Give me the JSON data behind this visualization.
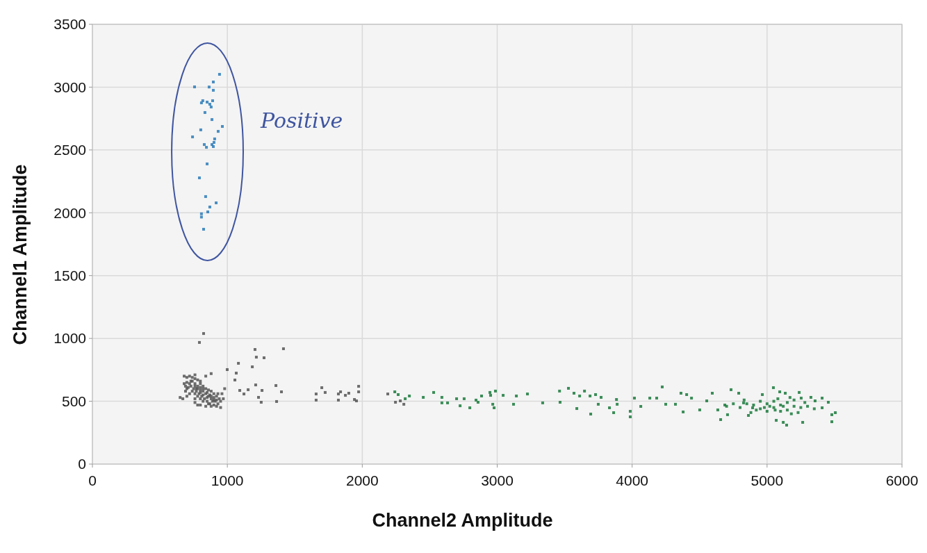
{
  "chart_data": {
    "type": "scatter",
    "xlabel": "Channel2 Amplitude",
    "ylabel": "Channel1 Amplitude",
    "xlim": [
      0,
      6000
    ],
    "ylim": [
      0,
      3500
    ],
    "xticks": [
      0,
      1000,
      2000,
      3000,
      4000,
      5000,
      6000
    ],
    "yticks": [
      0,
      500,
      1000,
      1500,
      2000,
      2500,
      3000,
      3500
    ],
    "grid": true,
    "marker": "square",
    "annotations": [
      "Positive"
    ],
    "series": [
      {
        "color": "#2b7bb9",
        "x": [
          942,
          896,
          757,
          865,
          896,
          818,
          808,
          850,
          891,
          870,
          880,
          834,
          886,
          963,
          932,
          803,
          742,
          906,
          901,
          829,
          886,
          845,
          896,
          850,
          793,
          839,
          917,
          870,
          855,
          808,
          808,
          824
        ],
        "values": [
          3102,
          3041,
          3002,
          3001,
          2975,
          2892,
          2875,
          2881,
          2892,
          2864,
          2842,
          2798,
          2742,
          2687,
          2648,
          2660,
          2604,
          2588,
          2560,
          2543,
          2543,
          2521,
          2527,
          2389,
          2278,
          2129,
          2079,
          2046,
          2007,
          1992,
          1966,
          1869
        ]
      },
      {
        "color": "#555555",
        "x": [
          680,
          700,
          720,
          740,
          760,
          780,
          700,
          720,
          740,
          760,
          780,
          800,
          820,
          840,
          860,
          880,
          900,
          920,
          940,
          950,
          930,
          900,
          870,
          850,
          830,
          810,
          790,
          770,
          750,
          730,
          710,
          700,
          690,
          680,
          760,
          800,
          820,
          840,
          860,
          880,
          900,
          910,
          860,
          820,
          880,
          840,
          800,
          780,
          760,
          720,
          700,
          690,
          740,
          770,
          800,
          820,
          850,
          870,
          890,
          900,
          920,
          930,
          780,
          800,
          760,
          730,
          800,
          820,
          850,
          880,
          760,
          970,
          960,
          980,
          650,
          670,
          880,
          840,
          760,
          780,
          800,
          950,
          920,
          824,
          793,
          1205,
          1416,
          1215,
          1272,
          1082,
          1185,
          999,
          1066,
          1056,
          1210,
          1360,
          1257,
          1401,
          1092,
          1154,
          1123,
          1231,
          1251,
          1365,
          1658,
          1700,
          1725,
          1658,
          1823,
          1839,
          1823,
          1875,
          1900,
          1942,
          1957,
          1973,
          1973,
          2189,
          2246,
          2282,
          2308
        ],
        "values": [
          700,
          690,
          700,
          690,
          680,
          670,
          650,
          640,
          660,
          640,
          620,
          640,
          620,
          600,
          590,
          580,
          560,
          540,
          520,
          500,
          480,
          470,
          480,
          500,
          520,
          540,
          560,
          580,
          600,
          620,
          610,
          600,
          620,
          640,
          560,
          590,
          580,
          560,
          540,
          520,
          510,
          500,
          480,
          500,
          460,
          460,
          520,
          540,
          520,
          560,
          540,
          580,
          580,
          600,
          610,
          550,
          530,
          550,
          500,
          530,
          510,
          560,
          600,
          570,
          620,
          660,
          660,
          600,
          570,
          540,
          490,
          520,
          560,
          600,
          530,
          520,
          720,
          700,
          710,
          470,
          470,
          450,
          460,
          1039,
          968,
          912,
          918,
          851,
          846,
          802,
          774,
          752,
          724,
          669,
          630,
          625,
          586,
          575,
          586,
          592,
          558,
          531,
          492,
          498,
          558,
          608,
          570,
          509,
          509,
          575,
          558,
          547,
          564,
          514,
          503,
          619,
          575,
          558,
          492,
          503,
          476
        ]
      },
      {
        "color": "#1a7a3c",
        "x": [
          2241,
          2266,
          2318,
          2349,
          2452,
          2529,
          2590,
          2590,
          2632,
          2699,
          2755,
          2725,
          2797,
          2843,
          2858,
          2884,
          2946,
          2951,
          2987,
          2967,
          2977,
          3044,
          3121,
          3142,
          3224,
          3337,
          3462,
          3528,
          3466,
          3569,
          3611,
          3647,
          3688,
          3590,
          3693,
          3729,
          3770,
          3749,
          3832,
          3884,
          3889,
          3863,
          3986,
          3986,
          4017,
          4064,
          4131,
          4182,
          4223,
          4249,
          4321,
          4362,
          4404,
          4378,
          4440,
          4501,
          4553,
          4594,
          4656,
          4635,
          4687,
          4733,
          4707,
          4790,
          4826,
          4862,
          4893,
          4965,
          5047,
          5094,
          5135,
          5068,
          5120,
          5145,
          5238,
          5253,
          5264,
          5325,
          5356,
          5408,
          5408,
          5454,
          5480,
          5506,
          5480,
          4900,
          4950,
          5000,
          5050,
          5100,
          5150,
          5200,
          5000,
          5100,
          4950,
          5050,
          5150,
          5200,
          4850,
          5250,
          5080,
          4980,
          5120,
          5020,
          5060,
          4920,
          5180,
          5230,
          4880,
          5300,
          4800,
          4750,
          4700,
          5350,
          5280,
          4830,
          5170
        ],
        "values": [
          575,
          553,
          520,
          542,
          531,
          570,
          531,
          487,
          487,
          520,
          520,
          464,
          448,
          509,
          492,
          542,
          570,
          547,
          581,
          476,
          448,
          547,
          476,
          542,
          558,
          487,
          581,
          603,
          492,
          564,
          542,
          581,
          542,
          442,
          398,
          553,
          531,
          476,
          448,
          514,
          476,
          409,
          420,
          376,
          525,
          459,
          525,
          525,
          614,
          476,
          476,
          564,
          553,
          415,
          525,
          431,
          503,
          564,
          354,
          431,
          470,
          592,
          393,
          564,
          487,
          387,
          448,
          553,
          608,
          575,
          564,
          348,
          332,
          310,
          570,
          525,
          332,
          531,
          503,
          525,
          448,
          492,
          393,
          409,
          337,
          470,
          440,
          480,
          450,
          470,
          490,
          460,
          420,
          420,
          500,
          500,
          430,
          510,
          480,
          450,
          520,
          450,
          460,
          460,
          430,
          430,
          400,
          410,
          410,
          460,
          450,
          480,
          460,
          440,
          490,
          510,
          530
        ]
      }
    ]
  }
}
